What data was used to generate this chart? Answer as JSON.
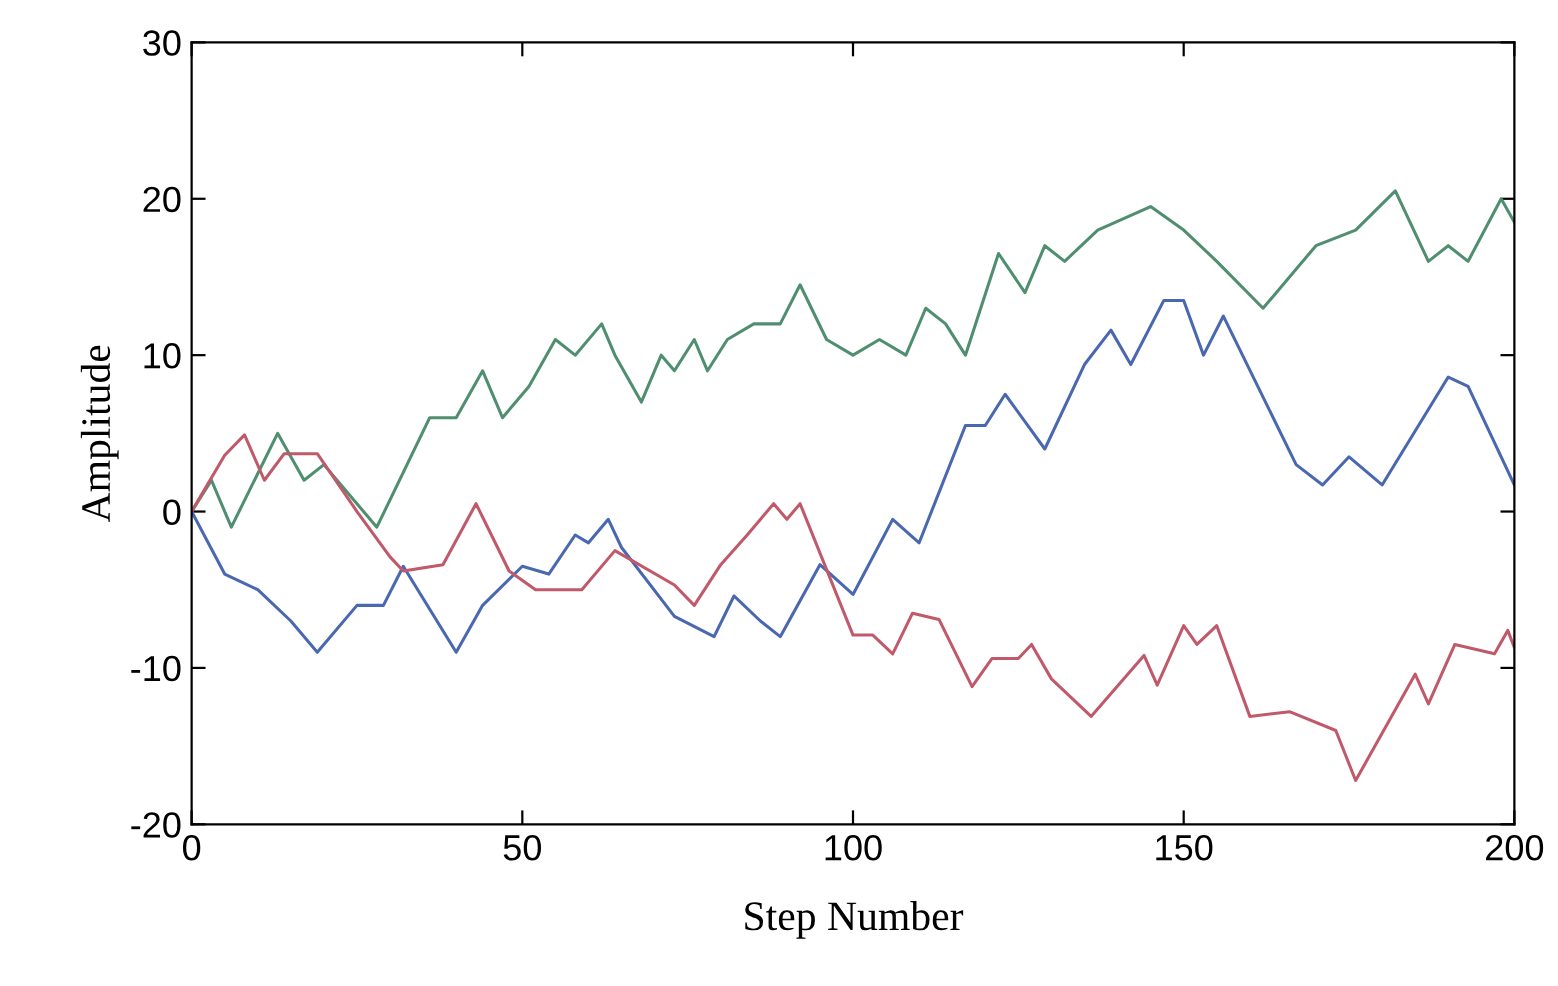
{
  "chart_data": {
    "type": "line",
    "xlabel": "Step Number",
    "ylabel": "Amplitude",
    "xlim": [
      0,
      200
    ],
    "ylim": [
      -20,
      30
    ],
    "xticks": [
      0,
      50,
      100,
      150,
      200
    ],
    "yticks": [
      -20,
      -10,
      0,
      10,
      20,
      30
    ],
    "grid": false,
    "legend": false,
    "marker": "none",
    "line_style": "solid",
    "series": [
      {
        "color": "#4f8f6f",
        "x": [
          0,
          3,
          6,
          13,
          17,
          20,
          24,
          28,
          36,
          40,
          44,
          47,
          51,
          55,
          58,
          62,
          64,
          68,
          71,
          73,
          76,
          78,
          81,
          85,
          89,
          92,
          96,
          100,
          104,
          108,
          111,
          114,
          117,
          122,
          126,
          129,
          132,
          137,
          145,
          150,
          155,
          162,
          170,
          176,
          182,
          187,
          190,
          193,
          198,
          200
        ],
        "values": [
          0,
          2,
          -1,
          5,
          2,
          3,
          1,
          -1,
          6,
          6,
          9,
          6,
          8,
          11,
          10,
          12,
          10,
          7,
          10,
          9,
          11,
          9,
          11,
          12,
          12,
          14.5,
          11,
          10,
          11,
          10,
          13,
          12,
          10,
          16.5,
          14,
          17,
          16,
          18,
          19.5,
          18,
          16,
          13,
          17,
          18,
          20.5,
          16,
          17,
          16,
          20,
          18.5
        ]
      },
      {
        "color": "#4a68b0",
        "x": [
          0,
          5,
          10,
          15,
          19,
          25,
          29,
          32,
          40,
          44,
          50,
          54,
          58,
          60,
          63,
          65,
          73,
          79,
          82,
          86,
          89,
          95,
          100,
          106,
          110,
          117,
          120,
          123,
          129,
          135,
          139,
          142,
          147,
          150,
          153,
          156,
          167,
          171,
          175,
          180,
          190,
          193,
          200
        ],
        "values": [
          0,
          -4,
          -5,
          -7,
          -9,
          -6,
          -6,
          -3.5,
          -9,
          -6,
          -3.5,
          -4,
          -1.5,
          -2,
          -0.5,
          -2.3,
          -6.7,
          -8,
          -5.4,
          -7,
          -8,
          -3.4,
          -5.3,
          -0.5,
          -2,
          5.5,
          5.5,
          7.5,
          4,
          9.4,
          11.6,
          9.4,
          13.5,
          13.5,
          10,
          12.5,
          3,
          1.7,
          3.5,
          1.7,
          8.6,
          8,
          1.7
        ]
      },
      {
        "color": "#c05a6a",
        "x": [
          0,
          5,
          8,
          11,
          14,
          19,
          25,
          30,
          32,
          38,
          43,
          48,
          52,
          59,
          64,
          73,
          76,
          80,
          84,
          88,
          90,
          92,
          100,
          103,
          106,
          109,
          113,
          118,
          121,
          125,
          127,
          130,
          136,
          144,
          146,
          150,
          152,
          155,
          160,
          166,
          173,
          176,
          185,
          187,
          191,
          197,
          199,
          200
        ],
        "values": [
          0,
          3.6,
          4.9,
          2,
          3.7,
          3.7,
          0,
          -2.9,
          -3.8,
          -3.4,
          0.5,
          -3.8,
          -5,
          -5,
          -2.5,
          -4.7,
          -6,
          -3.4,
          -1.5,
          0.5,
          -0.5,
          0.5,
          -7.9,
          -7.9,
          -9.1,
          -6.5,
          -6.9,
          -11.2,
          -9.4,
          -9.4,
          -8.5,
          -10.7,
          -13.1,
          -9.2,
          -11.1,
          -7.3,
          -8.5,
          -7.3,
          -13.1,
          -12.8,
          -14,
          -17.2,
          -10.4,
          -12.3,
          -8.5,
          -9.1,
          -7.6,
          -8.7
        ]
      }
    ]
  }
}
